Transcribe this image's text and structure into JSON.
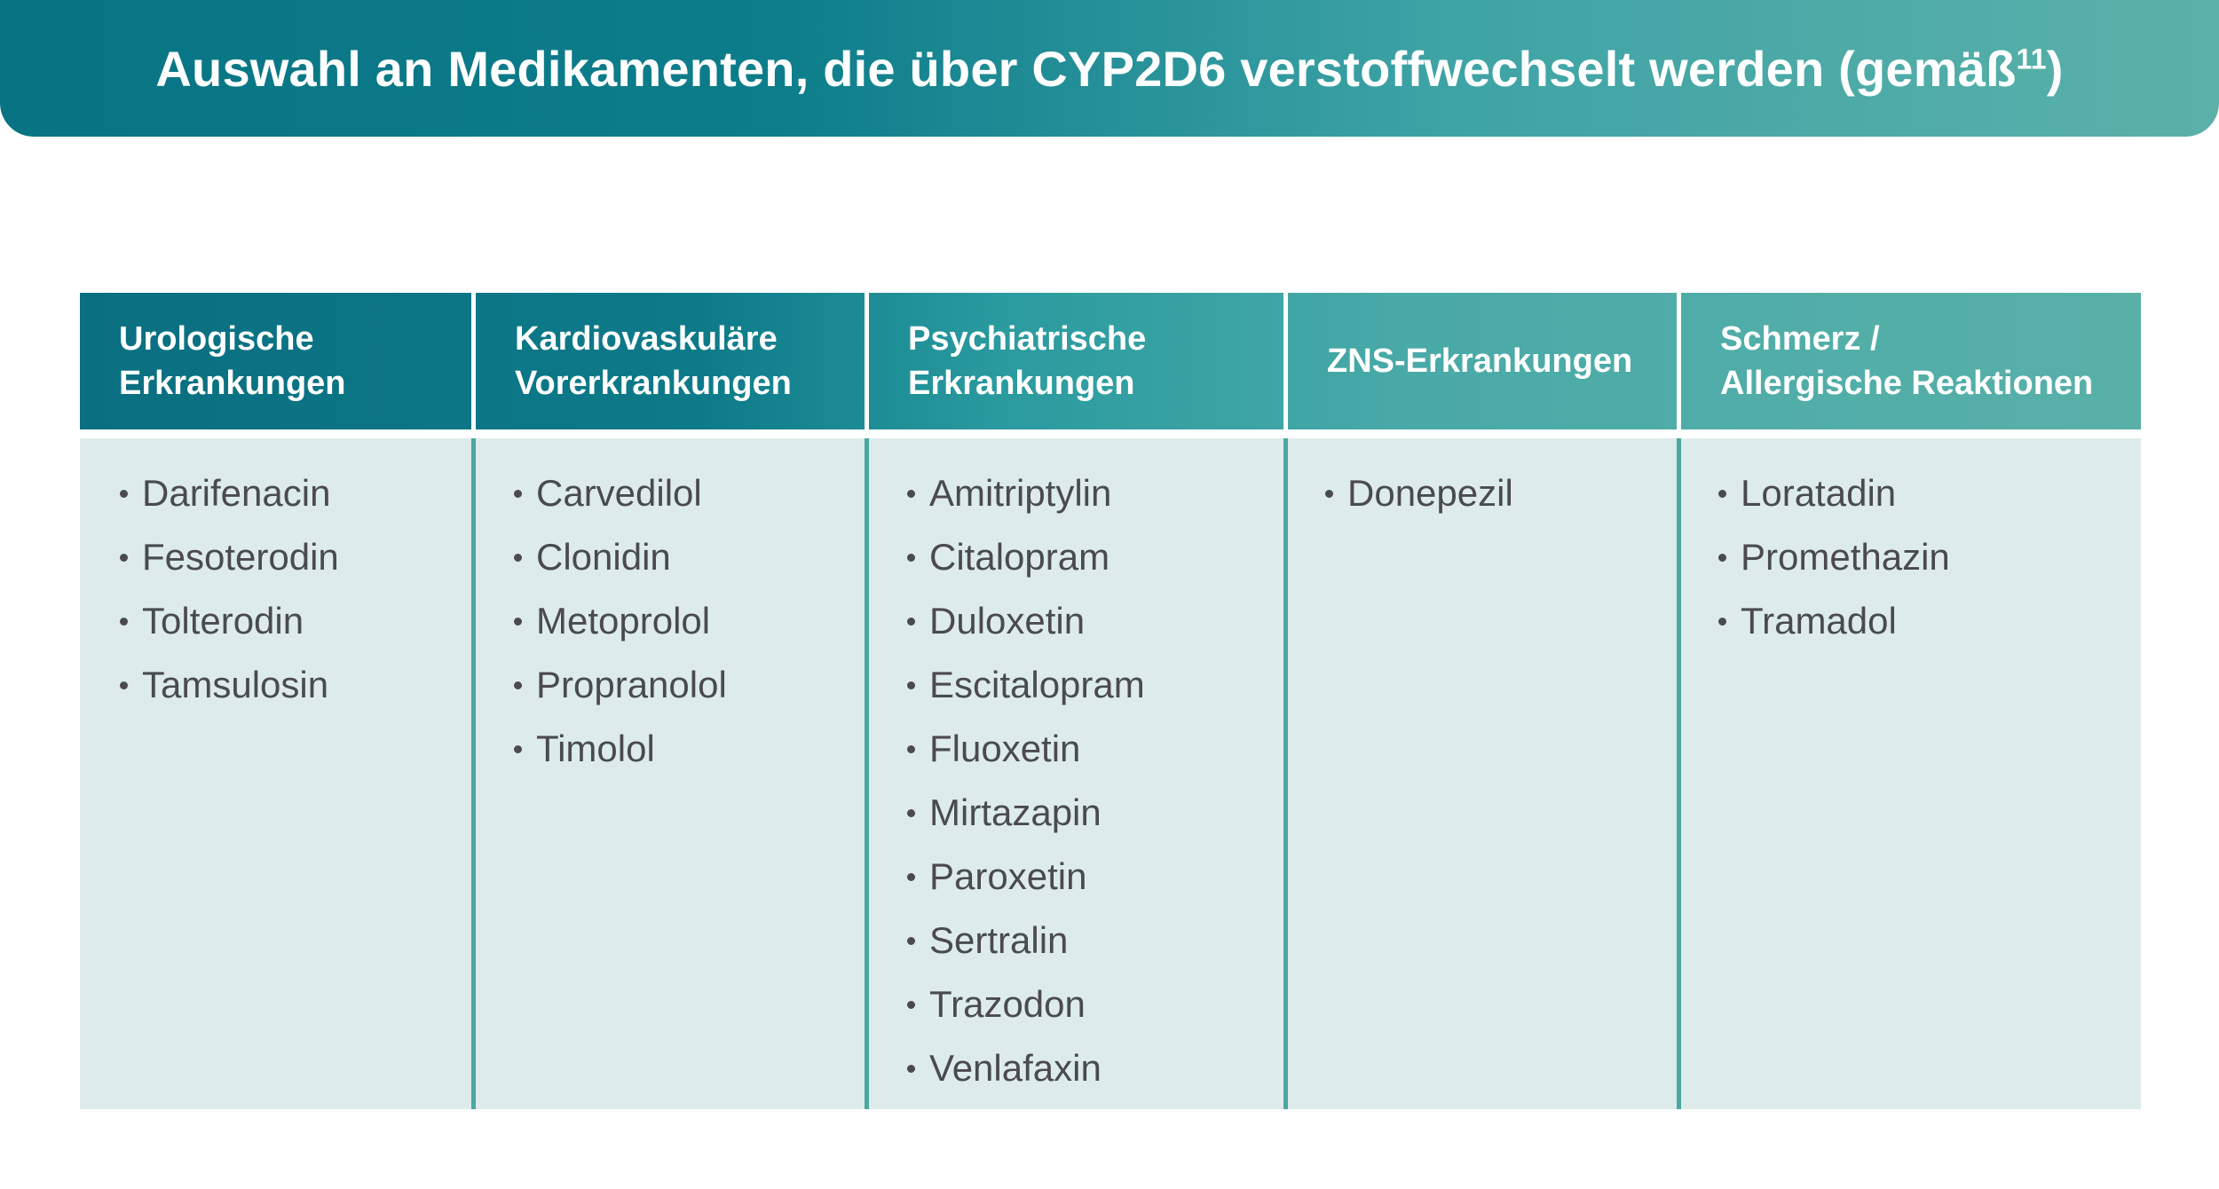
{
  "title": {
    "text": "Auswahl an Medikamenten, die über CYP2D6 verstoffwechselt werden (gemäß",
    "superscript": "11",
    "closing": ")"
  },
  "columns": [
    {
      "header_line1": "Urologische",
      "header_line2": "Erkrankungen",
      "items": [
        "Darifenacin",
        "Fesoterodin",
        "Tolterodin",
        "Tamsulosin"
      ]
    },
    {
      "header_line1": "Kardiovaskuläre",
      "header_line2": "Vorerkrankungen",
      "items": [
        "Carvedilol",
        "Clonidin",
        "Metoprolol",
        "Propranolol",
        "Timolol"
      ]
    },
    {
      "header_line1": "Psychiatrische",
      "header_line2": "Erkrankungen",
      "items": [
        "Amitriptylin",
        "Citalopram",
        "Duloxetin",
        "Escitalopram",
        "Fluoxetin",
        "Mirtazapin",
        "Paroxetin",
        "Sertralin",
        "Trazodon",
        "Venlafaxin"
      ]
    },
    {
      "header_line1": "ZNS-Erkrankungen",
      "header_line2": "",
      "items": [
        "Donepezil"
      ]
    },
    {
      "header_line1": "Schmerz /",
      "header_line2": "Allergische Reaktionen",
      "items": [
        "Loratadin",
        "Promethazin",
        "Tramadol"
      ]
    }
  ],
  "colors": {
    "title_gradient_start": "#087483",
    "title_gradient_end": "#5bb1a9",
    "header_start": "#0a6f81",
    "header_end": "#58b0a8",
    "body_background": "#ddeceb",
    "divider": "#4aa7a1",
    "text": "#4b4b4b"
  }
}
